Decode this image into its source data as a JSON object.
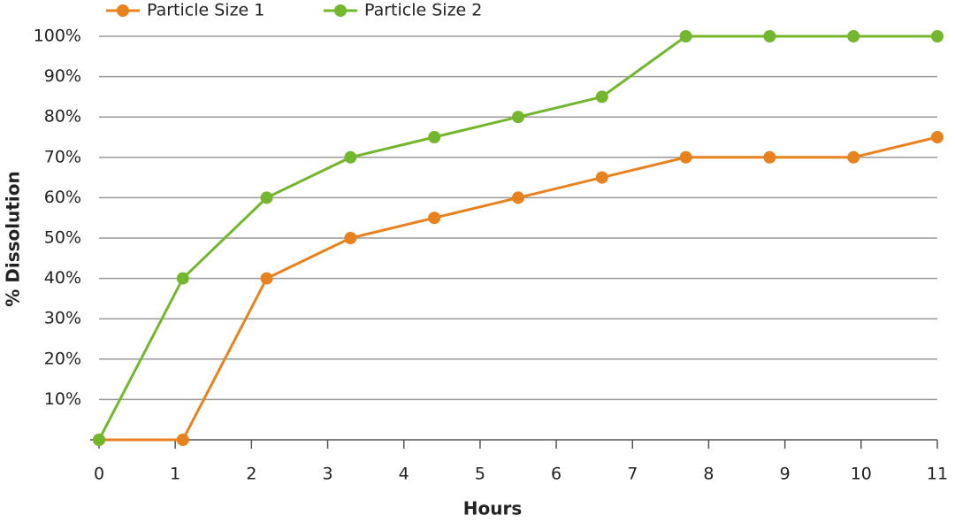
{
  "chart_data": {
    "type": "line",
    "x_label": "Hours",
    "y_label": "% Dissolution",
    "x": [
      0,
      1.1,
      2.2,
      3.3,
      4.4,
      5.5,
      6.6,
      7.7,
      8.8,
      9.9,
      11
    ],
    "series": [
      {
        "name": "Particle Size 1",
        "color": "#e8821e",
        "values": [
          0,
          0,
          40,
          50,
          55,
          60,
          65,
          70,
          70,
          70,
          75
        ]
      },
      {
        "name": "Particle Size 2",
        "color": "#74b72e",
        "values": [
          0,
          40,
          60,
          70,
          75,
          80,
          85,
          100,
          100,
          100,
          100
        ]
      }
    ],
    "xlim": [
      0,
      11
    ],
    "xticks": [
      0,
      1,
      2,
      3,
      4,
      5,
      6,
      7,
      8,
      9,
      10,
      11
    ],
    "ylim": [
      0,
      100
    ],
    "yticks": [
      {
        "value": 10,
        "label": "10%"
      },
      {
        "value": 20,
        "label": "20%"
      },
      {
        "value": 30,
        "label": "30%"
      },
      {
        "value": 40,
        "label": "40%"
      },
      {
        "value": 50,
        "label": "50%"
      },
      {
        "value": 60,
        "label": "60%"
      },
      {
        "value": 70,
        "label": "70%"
      },
      {
        "value": 80,
        "label": "80%"
      },
      {
        "value": 90,
        "label": "90%"
      },
      {
        "value": 100,
        "label": "100%"
      }
    ],
    "grid": true,
    "legend": "top-left"
  }
}
